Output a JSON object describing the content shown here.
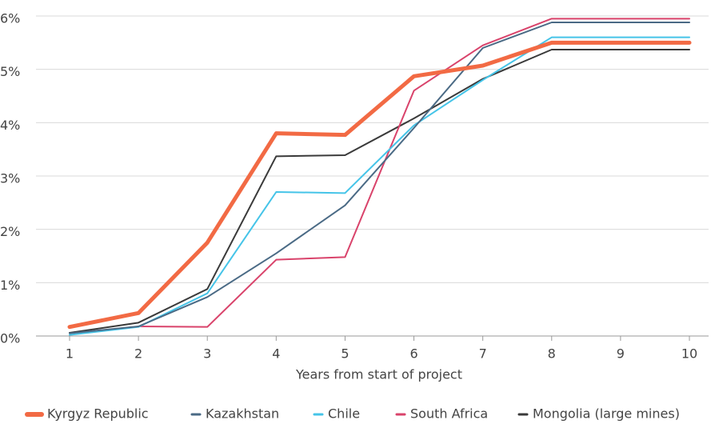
{
  "chart_data": {
    "type": "line",
    "x": [
      1,
      2,
      3,
      4,
      5,
      6,
      7,
      8,
      9,
      10
    ],
    "xlabel": "Years from start of project",
    "xlim": [
      1,
      10
    ],
    "xticks": [
      1,
      2,
      3,
      4,
      5,
      6,
      7,
      8,
      9,
      10
    ],
    "ylim": [
      0,
      6
    ],
    "yticks": [
      {
        "value": 0,
        "label": "0%"
      },
      {
        "value": 1,
        "label": "1%"
      },
      {
        "value": 2,
        "label": "2%"
      },
      {
        "value": 3,
        "label": "3%"
      },
      {
        "value": 4,
        "label": "4%"
      },
      {
        "value": 5,
        "label": "5%"
      },
      {
        "value": 6,
        "label": "6%"
      }
    ],
    "grid": true,
    "legend": "bottom",
    "series": [
      {
        "name": "Kyrgyz Republic",
        "color": "#f26a44",
        "width": 5,
        "values": [
          0.17,
          0.43,
          1.75,
          3.8,
          3.77,
          4.87,
          5.07,
          5.5,
          5.5,
          5.5
        ]
      },
      {
        "name": "Kazakhstan",
        "color": "#4a6a85",
        "width": 2,
        "values": [
          0.05,
          0.18,
          0.73,
          1.55,
          2.45,
          3.9,
          5.4,
          5.88,
          5.88,
          5.88
        ]
      },
      {
        "name": "Chile",
        "color": "#45c4e8",
        "width": 2,
        "values": [
          0.02,
          0.17,
          0.8,
          2.7,
          2.68,
          3.95,
          4.8,
          5.6,
          5.6,
          5.6
        ]
      },
      {
        "name": "South Africa",
        "color": "#d9436b",
        "width": 2,
        "values": [
          null,
          0.18,
          0.17,
          1.43,
          1.48,
          4.6,
          5.45,
          5.95,
          5.95,
          5.95
        ]
      },
      {
        "name": "Mongolia (large mines)",
        "color": "#3a3a3a",
        "width": 2,
        "values": [
          0.06,
          0.25,
          0.88,
          3.37,
          3.39,
          4.08,
          4.82,
          5.37,
          5.37,
          5.37
        ]
      }
    ]
  }
}
